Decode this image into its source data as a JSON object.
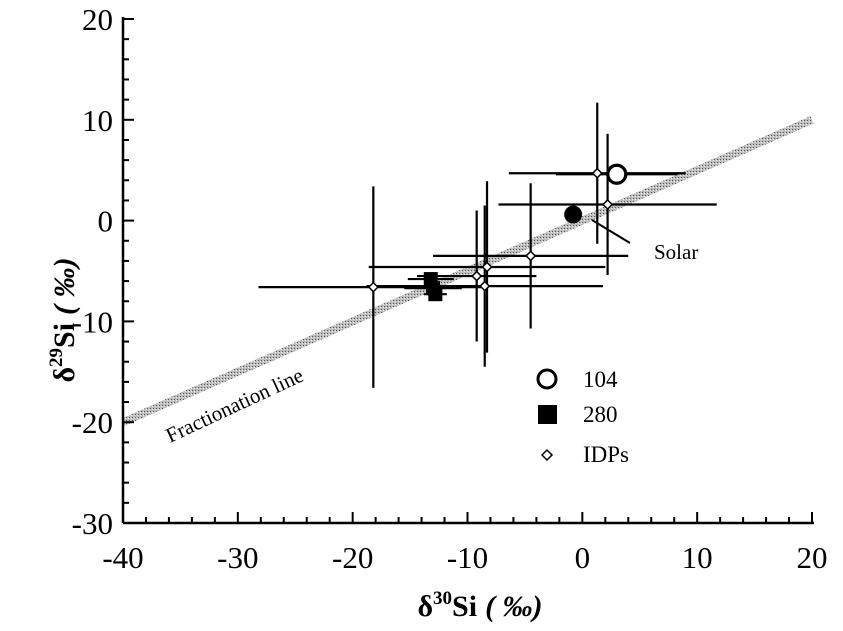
{
  "chart_data": {
    "type": "scatter",
    "title": "",
    "xlabel": {
      "delta": "δ",
      "sup": "30",
      "iso": "Si",
      "unit": "( ‰)"
    },
    "ylabel": {
      "delta": "δ",
      "sup": "29",
      "iso": "Si",
      "unit": "( ‰)"
    },
    "xlim": [
      -40,
      20
    ],
    "ylim": [
      -30,
      20
    ],
    "x_ticks": [
      "-40",
      "-30",
      "-20",
      "-10",
      "0",
      "10",
      "20"
    ],
    "y_ticks": [
      "20",
      "10",
      "0",
      "-10",
      "-20",
      "-30"
    ],
    "grid": false,
    "legend_position": "lower-right",
    "legend": [
      {
        "label": "104",
        "marker": "open-circle"
      },
      {
        "label": "280",
        "marker": "filled-square"
      },
      {
        "label": "IDPs",
        "marker": "open-diamond"
      }
    ],
    "annotations": {
      "fractionation_line": "Fractionation line",
      "solar": "Solar"
    },
    "fractionation_line": {
      "x": [
        -40,
        20
      ],
      "y": [
        -20,
        10
      ],
      "color": "#9a9a9a"
    },
    "series": [
      {
        "name": "104",
        "marker": "open-circle",
        "points": [
          {
            "x": 3.0,
            "y": 4.6,
            "xerr": 5.3,
            "yerr": 0
          }
        ]
      },
      {
        "name": "280",
        "marker": "filled-square",
        "points": [
          {
            "x": -13.2,
            "y": -5.8,
            "xerr": 2.0,
            "yerr": 0
          },
          {
            "x": -13.0,
            "y": -6.7,
            "xerr": 2.5,
            "yerr": 0
          },
          {
            "x": -12.8,
            "y": -7.3,
            "xerr": 1.0,
            "yerr": 0
          }
        ]
      },
      {
        "name": "Solar",
        "marker": "filled-circle",
        "points": [
          {
            "x": -0.8,
            "y": 0.6,
            "xerr": 0,
            "yerr": 0
          }
        ]
      },
      {
        "name": "IDPs",
        "marker": "open-diamond",
        "points": [
          {
            "x": 1.3,
            "y": 4.7,
            "xerr": 7.7,
            "yerr": 7.0
          },
          {
            "x": 2.2,
            "y": 1.6,
            "xerr": 9.5,
            "yerr": 7.0
          },
          {
            "x": -4.5,
            "y": -3.5,
            "xerr": 8.5,
            "yerr": 7.2
          },
          {
            "x": -8.3,
            "y": -4.6,
            "xerr": 10.3,
            "yerr": 8.5
          },
          {
            "x": -9.2,
            "y": -5.5,
            "xerr": 5.2,
            "yerr": 6.5
          },
          {
            "x": -8.5,
            "y": -6.5,
            "xerr": 10.3,
            "yerr": 8.0
          },
          {
            "x": -18.2,
            "y": -6.6,
            "xerr": 10.0,
            "yerr": 10.0
          }
        ]
      }
    ]
  }
}
